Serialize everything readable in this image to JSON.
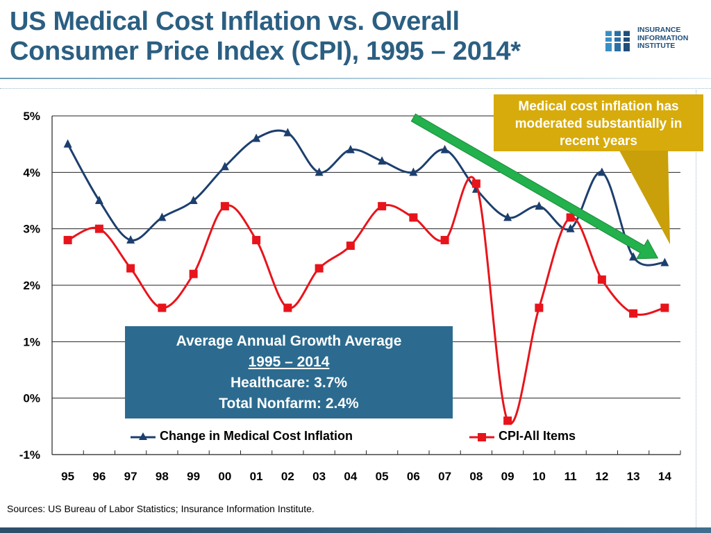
{
  "header": {
    "title_line1": "US Medical Cost Inflation vs. Overall",
    "title_line2": "Consumer Price Index (CPI), 1995 – 2014*"
  },
  "logo": {
    "line1": "INSURANCE",
    "line2": "INFORMATION",
    "line3": "INSTITUTE",
    "icon": "iii-logo-icon",
    "color": "#1f4e7a"
  },
  "callout": {
    "text": "Medical cost inflation has moderated substantially in recent years",
    "color": "#d7ab0c"
  },
  "summary_box": {
    "line1": "Average Annual Growth Average",
    "line2": "1995 – 2014",
    "line3": "Healthcare: 3.7%",
    "line4": "Total Nonfarm: 2.4%",
    "color": "#2c6b8f"
  },
  "sources": "Sources:  US Bureau of Labor Statistics; Insurance Information Institute.",
  "chart_data": {
    "type": "line",
    "title": "US Medical Cost Inflation vs. Overall Consumer Price Index (CPI), 1995 – 2014*",
    "xlabel": "",
    "ylabel": "",
    "categories": [
      "95",
      "96",
      "97",
      "98",
      "99",
      "00",
      "01",
      "02",
      "03",
      "04",
      "05",
      "06",
      "07",
      "08",
      "09",
      "10",
      "11",
      "12",
      "13",
      "14"
    ],
    "ylim": [
      -1,
      5
    ],
    "yticks": [
      -1,
      0,
      1,
      2,
      3,
      4,
      5
    ],
    "ytick_labels": [
      "-1%",
      "0%",
      "1%",
      "2%",
      "3%",
      "4%",
      "5%"
    ],
    "grid": true,
    "legend_position": "bottom",
    "series": [
      {
        "name": "Change in Medical Cost Inflation",
        "marker": "triangle",
        "color": "#1c3f6e",
        "values": [
          4.5,
          3.5,
          2.8,
          3.2,
          3.5,
          4.1,
          4.6,
          4.7,
          4.0,
          4.4,
          4.2,
          4.0,
          4.4,
          3.7,
          3.2,
          3.4,
          3.0,
          4.0,
          2.5,
          2.4
        ]
      },
      {
        "name": "CPI-All Items",
        "marker": "square",
        "color": "#e8141b",
        "values": [
          2.8,
          3.0,
          2.3,
          1.6,
          2.2,
          3.4,
          2.8,
          1.6,
          2.3,
          2.7,
          3.4,
          3.2,
          2.8,
          3.8,
          -0.4,
          1.6,
          3.2,
          2.1,
          1.5,
          1.6
        ]
      }
    ],
    "annotation_arrow": {
      "direction": "down-right",
      "from_category": "06",
      "to_category": "14",
      "color": "#22b14c"
    }
  }
}
